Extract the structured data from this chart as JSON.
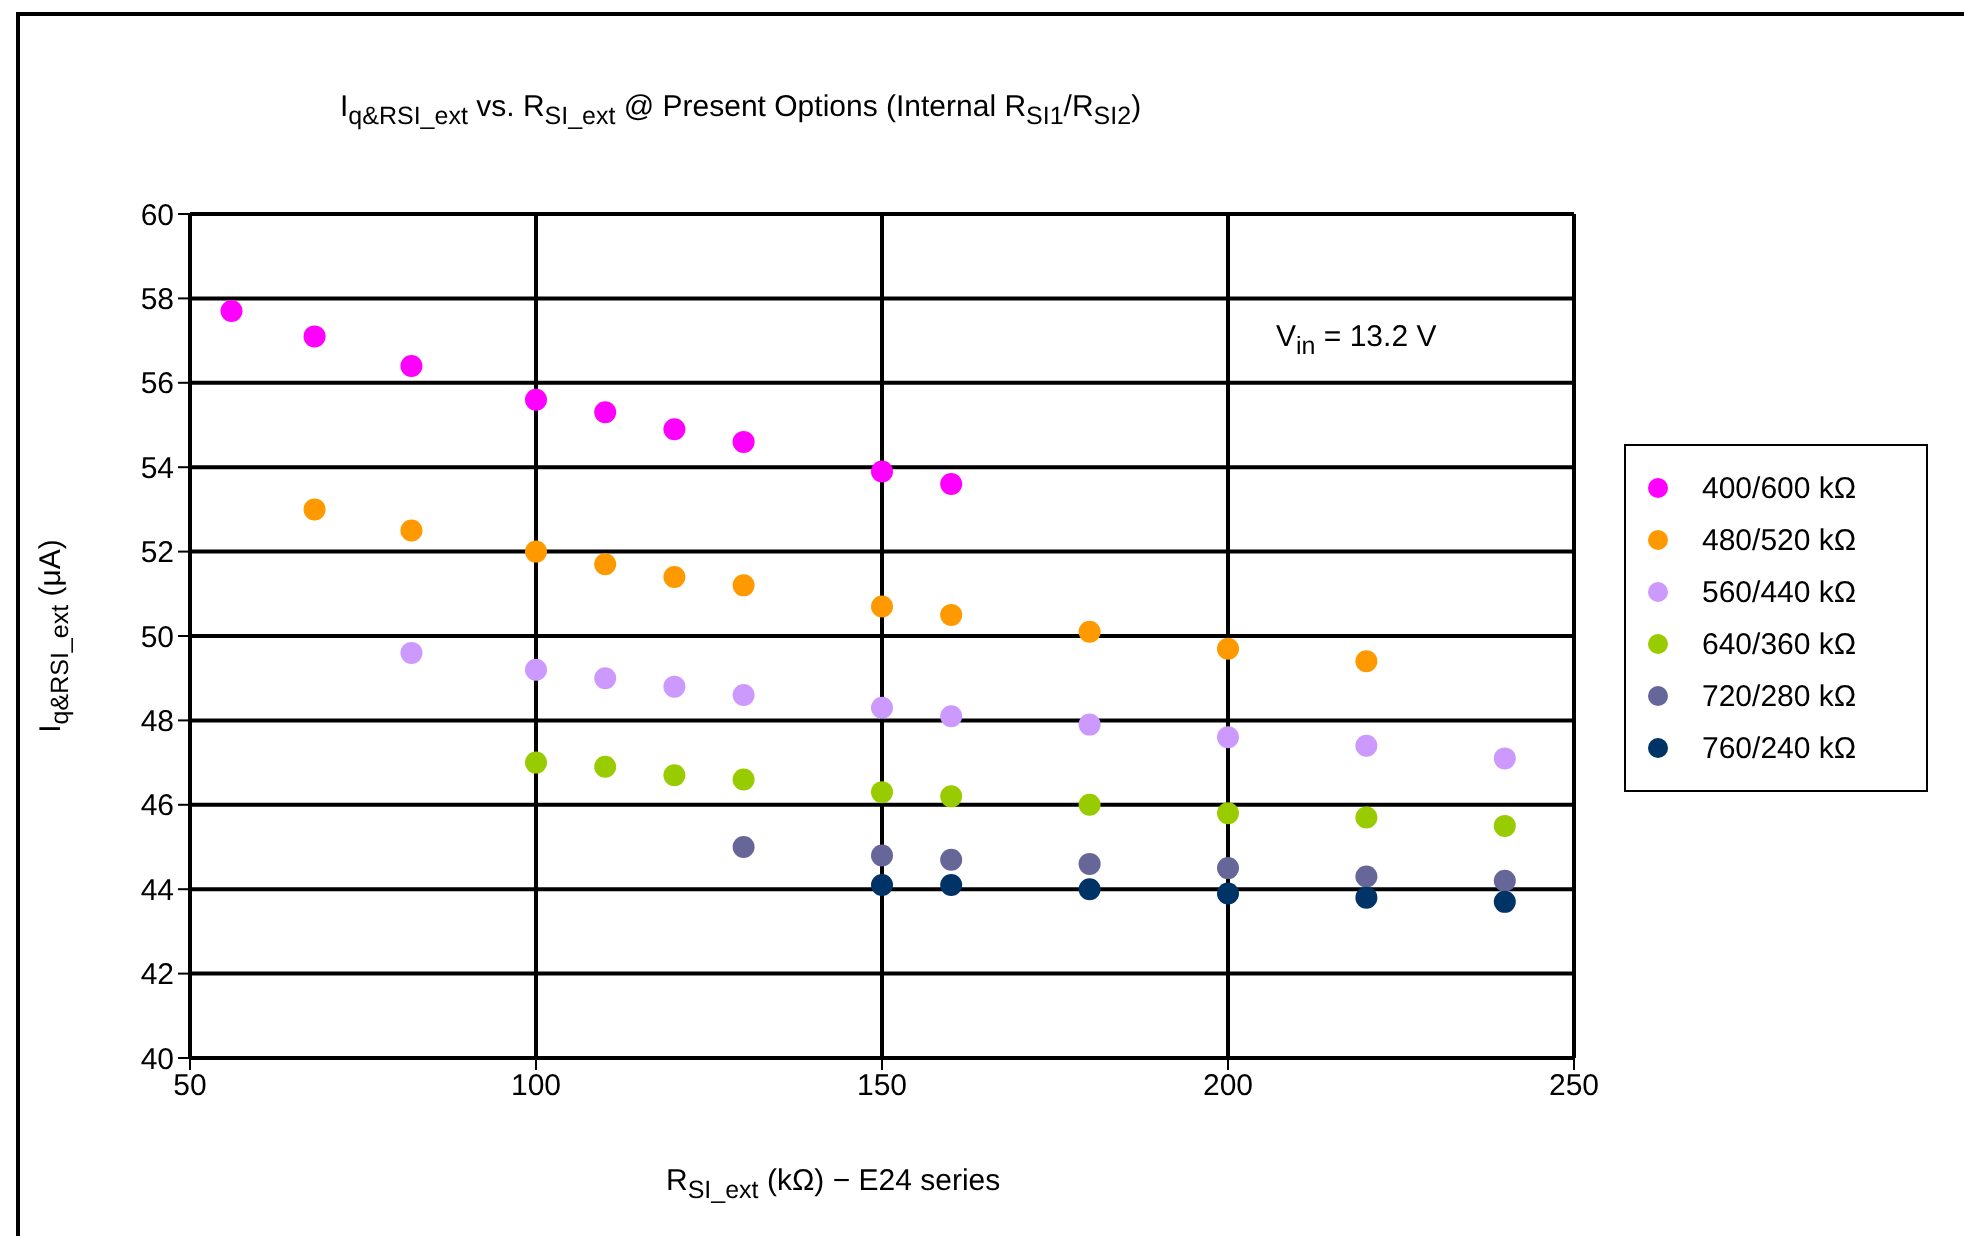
{
  "chart_data": {
    "type": "scatter",
    "title": "I$_{q&RSI_ext}$ vs. R$_{SI_ext}$ @ Present Options (Internal R$_{SI1}$/R$_{SI2}$)",
    "xlabel": "R$_{SI_ext}$ (kΩ) − E24 series",
    "ylabel": "I$_{q&RSI_ext}$ (μA)",
    "annotations": [
      "V$_{in}$ = 13.2 V"
    ],
    "x": [
      56,
      68,
      82,
      100,
      110,
      120,
      130,
      150,
      160,
      180,
      200,
      220,
      240
    ],
    "series": [
      {
        "name": "400/600 kΩ",
        "color": "#ff00ff",
        "values": [
          57.7,
          57.1,
          56.4,
          55.6,
          55.3,
          54.9,
          54.6,
          53.9,
          53.6,
          null,
          null,
          null,
          null
        ]
      },
      {
        "name": "480/520 kΩ",
        "color": "#ff9900",
        "values": [
          null,
          53.0,
          52.5,
          52.0,
          51.7,
          51.4,
          51.2,
          50.7,
          50.5,
          50.1,
          49.7,
          49.4,
          null
        ]
      },
      {
        "name": "560/440 kΩ",
        "color": "#cc99ff",
        "values": [
          null,
          null,
          49.6,
          49.2,
          49.0,
          48.8,
          48.6,
          48.3,
          48.1,
          47.9,
          47.6,
          47.4,
          47.1
        ]
      },
      {
        "name": "640/360 kΩ",
        "color": "#99cc00",
        "values": [
          null,
          null,
          null,
          47.0,
          46.9,
          46.7,
          46.6,
          46.3,
          46.2,
          46.0,
          45.8,
          45.7,
          45.5
        ]
      },
      {
        "name": "720/280 kΩ",
        "color": "#666699",
        "values": [
          null,
          null,
          null,
          null,
          null,
          null,
          45.0,
          44.8,
          44.7,
          44.6,
          44.5,
          44.3,
          44.2
        ]
      },
      {
        "name": "760/240 kΩ",
        "color": "#003366",
        "values": [
          null,
          null,
          null,
          null,
          null,
          null,
          null,
          44.1,
          44.1,
          44.0,
          43.9,
          43.8,
          43.7
        ]
      }
    ],
    "xlim": [
      50,
      250
    ],
    "xticks": [
      50,
      100,
      150,
      200,
      250
    ],
    "ylim": [
      40,
      60
    ],
    "yticks": [
      40,
      42,
      44,
      46,
      48,
      50,
      52,
      54,
      56,
      58,
      60
    ],
    "grid": true,
    "legend": "right",
    "marker": "circle"
  }
}
